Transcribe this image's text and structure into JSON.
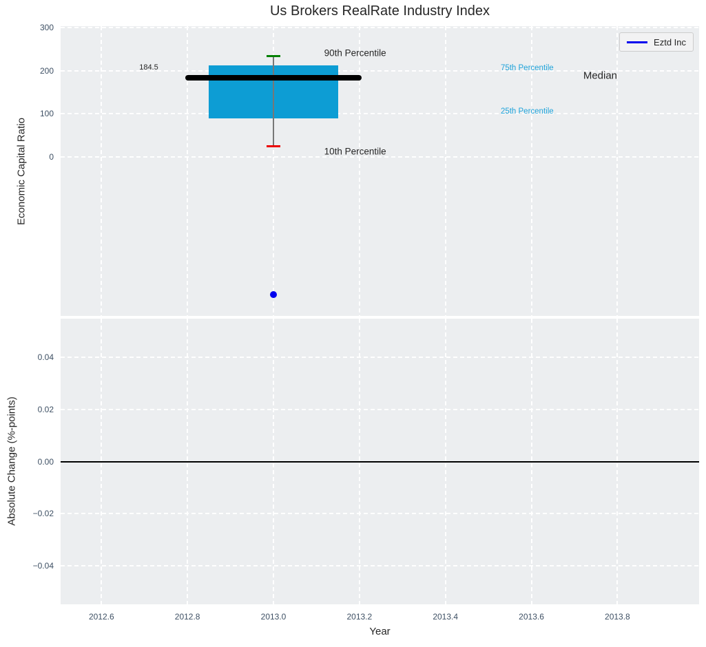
{
  "colors": {
    "figure_bg": "#ffffff",
    "axes_bg": "#eceef0",
    "grid": "#ffffff",
    "tick_label": "#3d4f63",
    "text": "#262626",
    "box_fill": "#0d9dd4",
    "median_line": "#000000",
    "whisker": "#777777",
    "cap_90th": "#008000",
    "cap_10th": "#ec0000",
    "series_blue": "#0000ee",
    "annotation_cyan": "#1fa3da",
    "zero_line": "#000000",
    "legend_bg": "#f2f2f3",
    "legend_border": "#cccccc"
  },
  "chart_data": [
    {
      "type": "boxplot",
      "title": "Us Brokers RealRate Industry Index",
      "ylabel": "Economic Capital Ratio",
      "xlabel": "Year",
      "xlim": [
        2012.505,
        2013.99
      ],
      "ylim": [
        -370,
        304
      ],
      "xticks": [
        2012.6,
        2012.8,
        2013.0,
        2013.2,
        2013.4,
        2013.6,
        2013.8
      ],
      "yticks": [
        0,
        100,
        200,
        300
      ],
      "grid": true,
      "boxes": [
        {
          "x_center": 2013.0,
          "box_left": 2012.85,
          "box_right": 2013.15,
          "p10": 24,
          "p25": 90,
          "median": 184.5,
          "p75": 212,
          "p90": 235,
          "median_line_left": 2012.795,
          "median_line_right": 2013.205,
          "median_label": "184.5",
          "cap_half_width": 0.016
        }
      ],
      "series": [
        {
          "name": "Eztd Inc",
          "color": "#0000ee",
          "points": [
            {
              "x": 2013.0,
              "y": -320
            }
          ]
        }
      ],
      "annotations": [
        {
          "text": "90th Percentile",
          "x": 2013.19,
          "y": 242,
          "color": "#262626",
          "size": 13.5
        },
        {
          "text": "75th Percentile",
          "x": 2013.59,
          "y": 206,
          "color": "#1fa3da",
          "size": 11.5
        },
        {
          "text": "Median",
          "x": 2013.76,
          "y": 189,
          "color": "#262626",
          "size": 15
        },
        {
          "text": "25th Percentile",
          "x": 2013.59,
          "y": 106,
          "color": "#1fa3da",
          "size": 11.5
        },
        {
          "text": "10th Percentile",
          "x": 2013.19,
          "y": 13,
          "color": "#262626",
          "size": 13.5
        },
        {
          "text": "184.5",
          "x": 2012.71,
          "y": 208,
          "color": "#262626",
          "size": 11
        }
      ],
      "legend": {
        "label": "Eztd Inc",
        "loc": "upper right"
      }
    },
    {
      "type": "line",
      "ylabel": "Absolute Change (%-points)",
      "xlabel": "Year",
      "xlim": [
        2012.505,
        2013.99
      ],
      "ylim": [
        -0.0547,
        0.0547
      ],
      "xticks": [
        2012.6,
        2012.8,
        2013.0,
        2013.2,
        2013.4,
        2013.6,
        2013.8
      ],
      "yticks": [
        0.04,
        0.02,
        0.0,
        -0.02,
        -0.04
      ],
      "grid": true,
      "zero_line_y": 0,
      "series": []
    }
  ]
}
